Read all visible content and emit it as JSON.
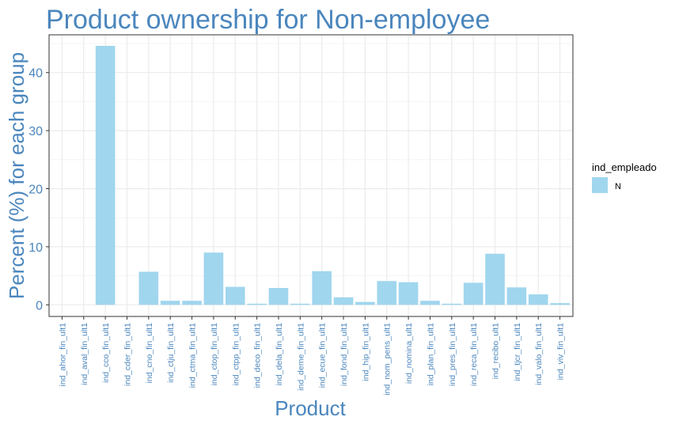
{
  "chart_data": {
    "type": "bar",
    "title": "Product ownership for Non-employee",
    "xlabel": "Product",
    "ylabel": "Percent (%) for each group",
    "ylim": [
      -2,
      46.5
    ],
    "yticks": [
      0,
      10,
      20,
      30,
      40
    ],
    "grid": true,
    "legend_position": "right",
    "legend_title": "ind_empleado",
    "categories": [
      "ind_ahor_fin_ult1",
      "ind_aval_fin_ult1",
      "ind_cco_fin_ult1",
      "ind_cder_fin_ult1",
      "ind_cno_fin_ult1",
      "ind_ctju_fin_ult1",
      "ind_ctma_fin_ult1",
      "ind_ctop_fin_ult1",
      "ind_ctpp_fin_ult1",
      "ind_deco_fin_ult1",
      "ind_dela_fin_ult1",
      "ind_deme_fin_ult1",
      "ind_ecue_fin_ult1",
      "ind_fond_fin_ult1",
      "ind_hip_fin_ult1",
      "ind_nom_pens_ult1",
      "ind_nomina_ult1",
      "ind_plan_fin_ult1",
      "ind_pres_fin_ult1",
      "ind_reca_fin_ult1",
      "ind_recibo_ult1",
      "ind_tjcr_fin_ult1",
      "ind_valo_fin_ult1",
      "ind_viv_fin_ult1"
    ],
    "series": [
      {
        "name": "N",
        "color": "#a0d6ee",
        "values": [
          0.0,
          0.0,
          44.6,
          0.0,
          5.7,
          0.7,
          0.7,
          9.0,
          3.1,
          0.2,
          2.9,
          0.2,
          5.8,
          1.3,
          0.5,
          4.1,
          3.9,
          0.7,
          0.2,
          3.8,
          8.8,
          3.0,
          1.8,
          0.3
        ]
      }
    ]
  },
  "colors": {
    "title": "#4a86bd",
    "axis_text": "#4a86bd",
    "grid_major": "#ebebeb",
    "grid_minor": "#f4f4f4",
    "panel_border": "#333333",
    "bar": "#a0d6ee"
  }
}
